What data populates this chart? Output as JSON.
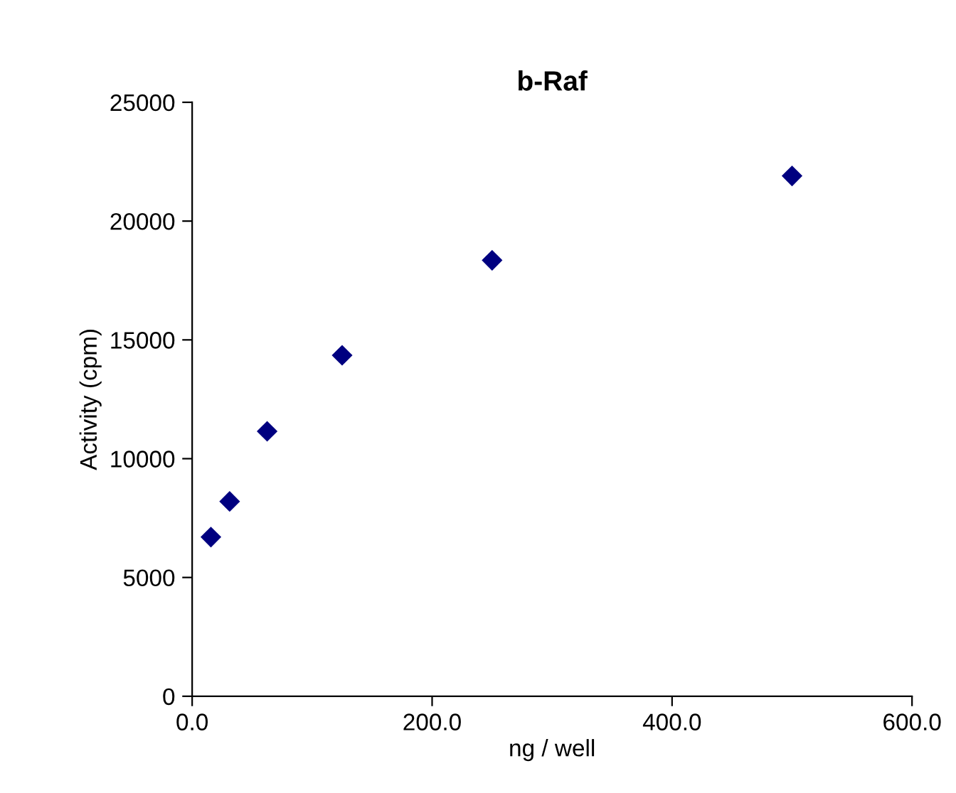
{
  "chart_data": {
    "type": "scatter",
    "title": "b-Raf",
    "xlabel": "ng / well",
    "ylabel": "Activity (cpm)",
    "x": [
      15.625,
      31.25,
      62.5,
      125,
      250,
      500
    ],
    "series": [
      {
        "color": "#000080",
        "values": [
          6700,
          8200,
          11150,
          14350,
          18350,
          21900
        ]
      }
    ],
    "marker": "diamond",
    "xlim": [
      0,
      600
    ],
    "xticks": [
      {
        "value": 0,
        "label": "0.0"
      },
      {
        "value": 200,
        "label": "200.0"
      },
      {
        "value": 400,
        "label": "400.0"
      },
      {
        "value": 600,
        "label": "600.0"
      }
    ],
    "ylim": [
      0,
      25000
    ],
    "yticks": [
      0,
      5000,
      10000,
      15000,
      20000,
      25000
    ],
    "grid": false,
    "legend": false
  }
}
